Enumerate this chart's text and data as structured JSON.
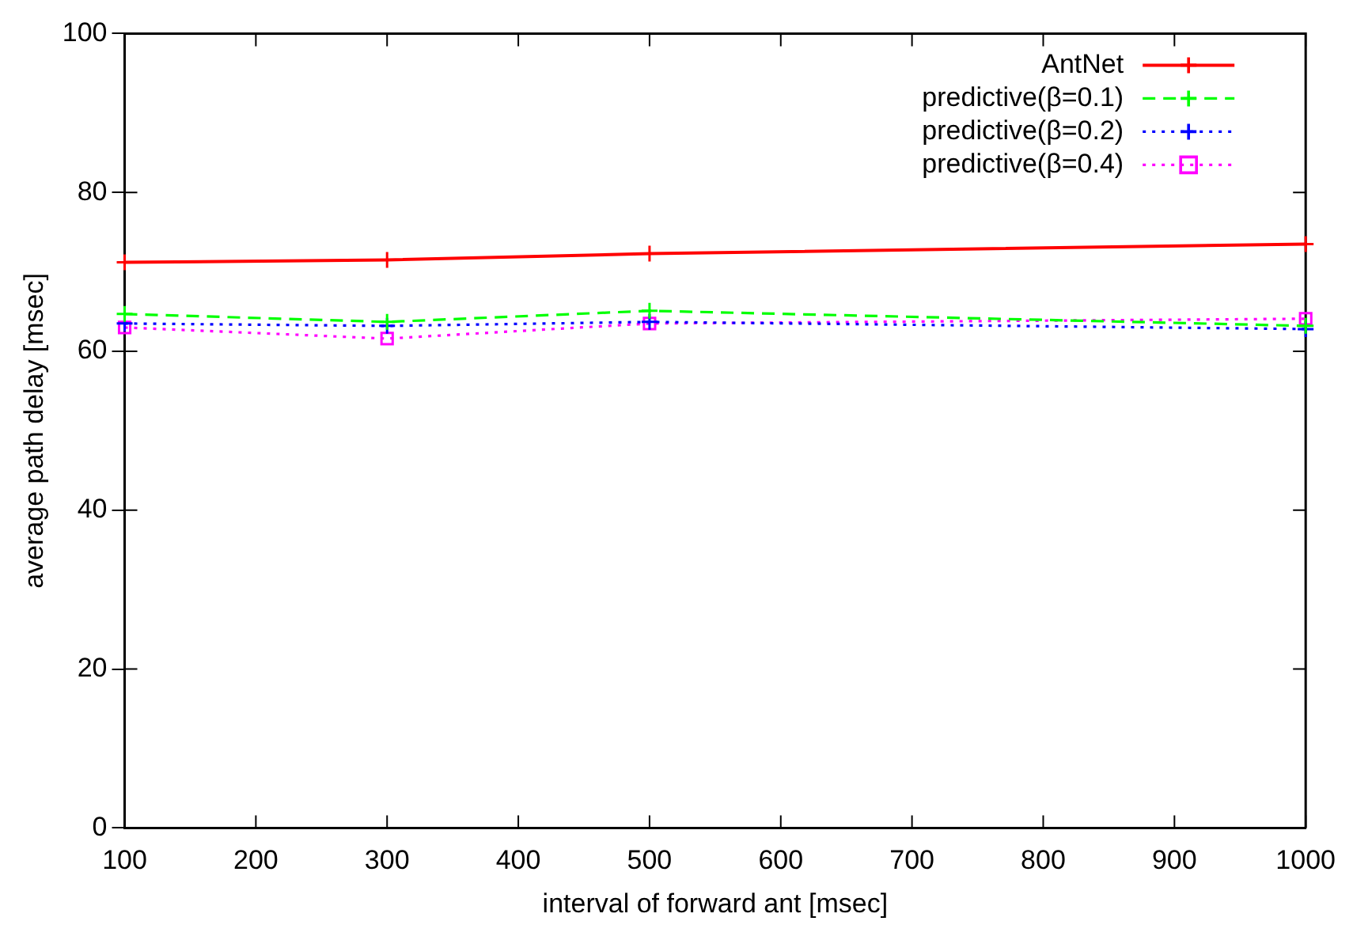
{
  "chart_data": {
    "type": "line",
    "xlabel": "interval of forward ant [msec]",
    "ylabel": "average path delay [msec]",
    "x": [
      100,
      300,
      500,
      1000
    ],
    "xlim": [
      100,
      1000
    ],
    "xticks": [
      100,
      200,
      300,
      400,
      500,
      600,
      700,
      800,
      900,
      1000
    ],
    "ylim": [
      0,
      100
    ],
    "yticks": [
      0,
      20,
      40,
      60,
      80,
      100
    ],
    "grid": false,
    "legend": "top right",
    "series": [
      {
        "name": "AntNet",
        "color": "#ff0000",
        "values": [
          71.2,
          71.5,
          72.3,
          73.5
        ],
        "marker": "cross",
        "line_style": "solid"
      },
      {
        "name": "predictive(β=0.1)",
        "color": "#00ff00",
        "values": [
          64.7,
          63.7,
          65.1,
          63.2
        ],
        "marker": "cross",
        "line_style": "dashed"
      },
      {
        "name": "predictive(β=0.2)",
        "color": "#0000ff",
        "values": [
          63.5,
          63.2,
          63.7,
          62.8
        ],
        "marker": "cross",
        "line_style": "dotted"
      },
      {
        "name": "predictive(β=0.4)",
        "color": "#ff00ff",
        "values": [
          63.0,
          61.6,
          63.5,
          64.1
        ],
        "marker": "square",
        "line_style": "dotted"
      }
    ]
  }
}
